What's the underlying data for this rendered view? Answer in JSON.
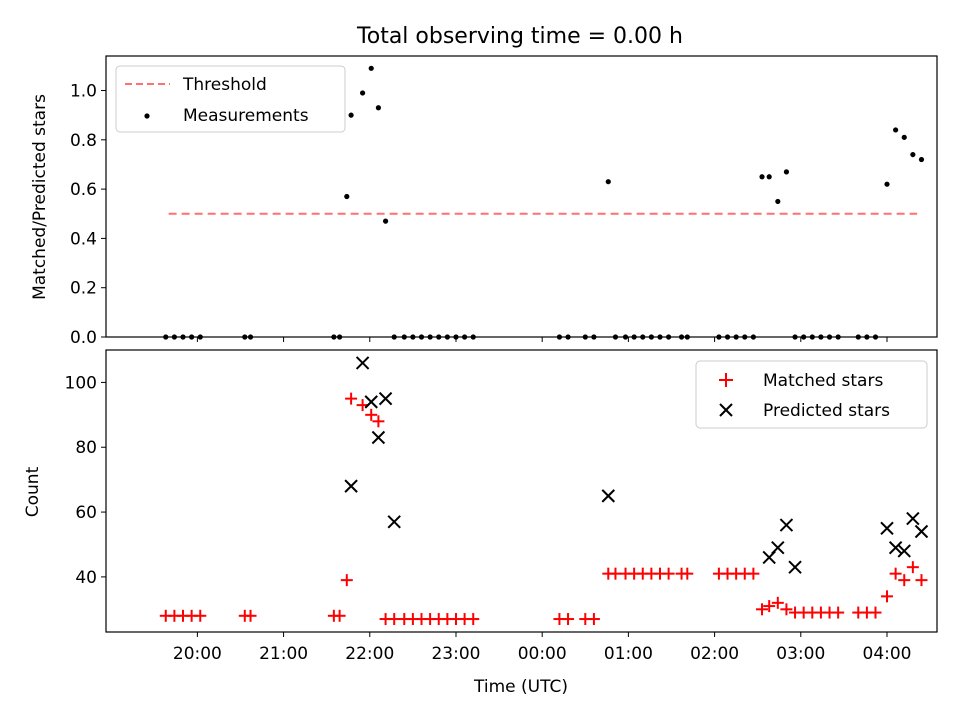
{
  "chart_data": [
    {
      "type": "scatter",
      "title": "Total observing time = 0.00 h",
      "xlabel": "",
      "ylabel": "Matched/Predicted stars",
      "ylim": [
        0,
        1.14
      ],
      "xlim_hours": [
        18.94,
        28.58
      ],
      "yticks": [
        "0.0",
        "0.2",
        "0.4",
        "0.6",
        "0.8",
        "1.0"
      ],
      "grid": false,
      "legend_position": "upper-left",
      "legend": [
        "Threshold",
        "Measurements"
      ],
      "threshold": {
        "name": "Threshold",
        "value": 0.5,
        "x_start": "19:40",
        "x_end": "04:21",
        "color": "#ff7070"
      },
      "series": [
        {
          "name": "Measurements",
          "marker": "dot",
          "color": "#000000",
          "x": [
            "19:38",
            "19:44",
            "19:50",
            "19:56",
            "20:02",
            "20:33",
            "20:37",
            "21:35",
            "21:39",
            "21:44",
            "21:47",
            "21:55",
            "22:01",
            "22:06",
            "22:11",
            "22:17",
            "22:24",
            "22:30",
            "22:36",
            "22:42",
            "22:48",
            "22:54",
            "23:00",
            "23:06",
            "23:12",
            "00:12",
            "00:18",
            "00:30",
            "00:36",
            "00:46",
            "00:51",
            "00:58",
            "01:04",
            "01:10",
            "01:16",
            "01:22",
            "01:28",
            "01:37",
            "01:41",
            "02:03",
            "02:09",
            "02:15",
            "02:21",
            "02:27",
            "02:33",
            "02:38",
            "02:44",
            "02:50",
            "02:56",
            "03:02",
            "03:08",
            "03:14",
            "03:20",
            "03:26",
            "03:40",
            "03:46",
            "03:52",
            "04:00",
            "04:06",
            "04:12",
            "04:18",
            "04:24"
          ],
          "y": [
            0,
            0,
            0,
            0,
            0,
            0,
            0,
            0,
            0,
            0.57,
            0.9,
            0.99,
            1.09,
            0.93,
            0.47,
            0,
            0,
            0,
            0,
            0,
            0,
            0,
            0,
            0,
            0,
            0,
            0,
            0,
            0,
            0.63,
            0,
            0,
            0,
            0,
            0,
            0,
            0,
            0,
            0,
            0,
            0,
            0,
            0,
            0,
            0.65,
            0.65,
            0.55,
            0.67,
            0,
            0,
            0,
            0,
            0,
            0,
            0,
            0,
            0,
            0.62,
            0.84,
            0.81,
            0.74,
            0.72
          ]
        }
      ]
    },
    {
      "type": "scatter",
      "title": "",
      "xlabel": "Time (UTC)",
      "ylabel": "Count",
      "ylim": [
        23,
        110
      ],
      "xlim_hours": [
        18.94,
        28.58
      ],
      "yticks": [
        "40",
        "60",
        "80",
        "100"
      ],
      "xticks": [
        "20:00",
        "21:00",
        "22:00",
        "23:00",
        "00:00",
        "01:00",
        "02:00",
        "03:00",
        "04:00"
      ],
      "grid": false,
      "legend_position": "upper-right",
      "legend": [
        "Matched stars",
        "Predicted stars"
      ],
      "series": [
        {
          "name": "Matched stars",
          "marker": "plus",
          "color": "#ff0000",
          "x": [
            "19:38",
            "19:44",
            "19:50",
            "19:56",
            "20:02",
            "20:33",
            "20:37",
            "21:35",
            "21:39",
            "21:44",
            "21:47",
            "21:55",
            "22:01",
            "22:06",
            "22:11",
            "22:17",
            "22:24",
            "22:30",
            "22:36",
            "22:42",
            "22:48",
            "22:54",
            "23:00",
            "23:06",
            "23:12",
            "00:12",
            "00:18",
            "00:30",
            "00:36",
            "00:46",
            "00:51",
            "00:58",
            "01:04",
            "01:10",
            "01:16",
            "01:22",
            "01:28",
            "01:37",
            "01:41",
            "02:03",
            "02:09",
            "02:15",
            "02:21",
            "02:27",
            "02:33",
            "02:38",
            "02:44",
            "02:50",
            "02:56",
            "03:02",
            "03:08",
            "03:14",
            "03:20",
            "03:26",
            "03:40",
            "03:46",
            "03:52",
            "04:00",
            "04:06",
            "04:12",
            "04:18",
            "04:24"
          ],
          "y": [
            28,
            28,
            28,
            28,
            28,
            28,
            28,
            28,
            28,
            39,
            95,
            93,
            90,
            88,
            27,
            27,
            27,
            27,
            27,
            27,
            27,
            27,
            27,
            27,
            27,
            27,
            27,
            27,
            27,
            41,
            41,
            41,
            41,
            41,
            41,
            41,
            41,
            41,
            41,
            41,
            41,
            41,
            41,
            41,
            30,
            31,
            32,
            30,
            29,
            29,
            29,
            29,
            29,
            29,
            29,
            29,
            29,
            34,
            41,
            39,
            43,
            39
          ]
        },
        {
          "name": "Predicted stars",
          "marker": "x",
          "color": "#000000",
          "x": [
            "21:47",
            "21:55",
            "22:01",
            "22:06",
            "22:11",
            "22:17",
            "00:46",
            "02:38",
            "02:44",
            "02:50",
            "02:56",
            "04:00",
            "04:06",
            "04:12",
            "04:18",
            "04:24"
          ],
          "y": [
            68,
            106,
            94,
            83,
            95,
            57,
            65,
            46,
            49,
            56,
            43,
            55,
            49,
            48,
            58,
            54
          ]
        }
      ]
    }
  ]
}
